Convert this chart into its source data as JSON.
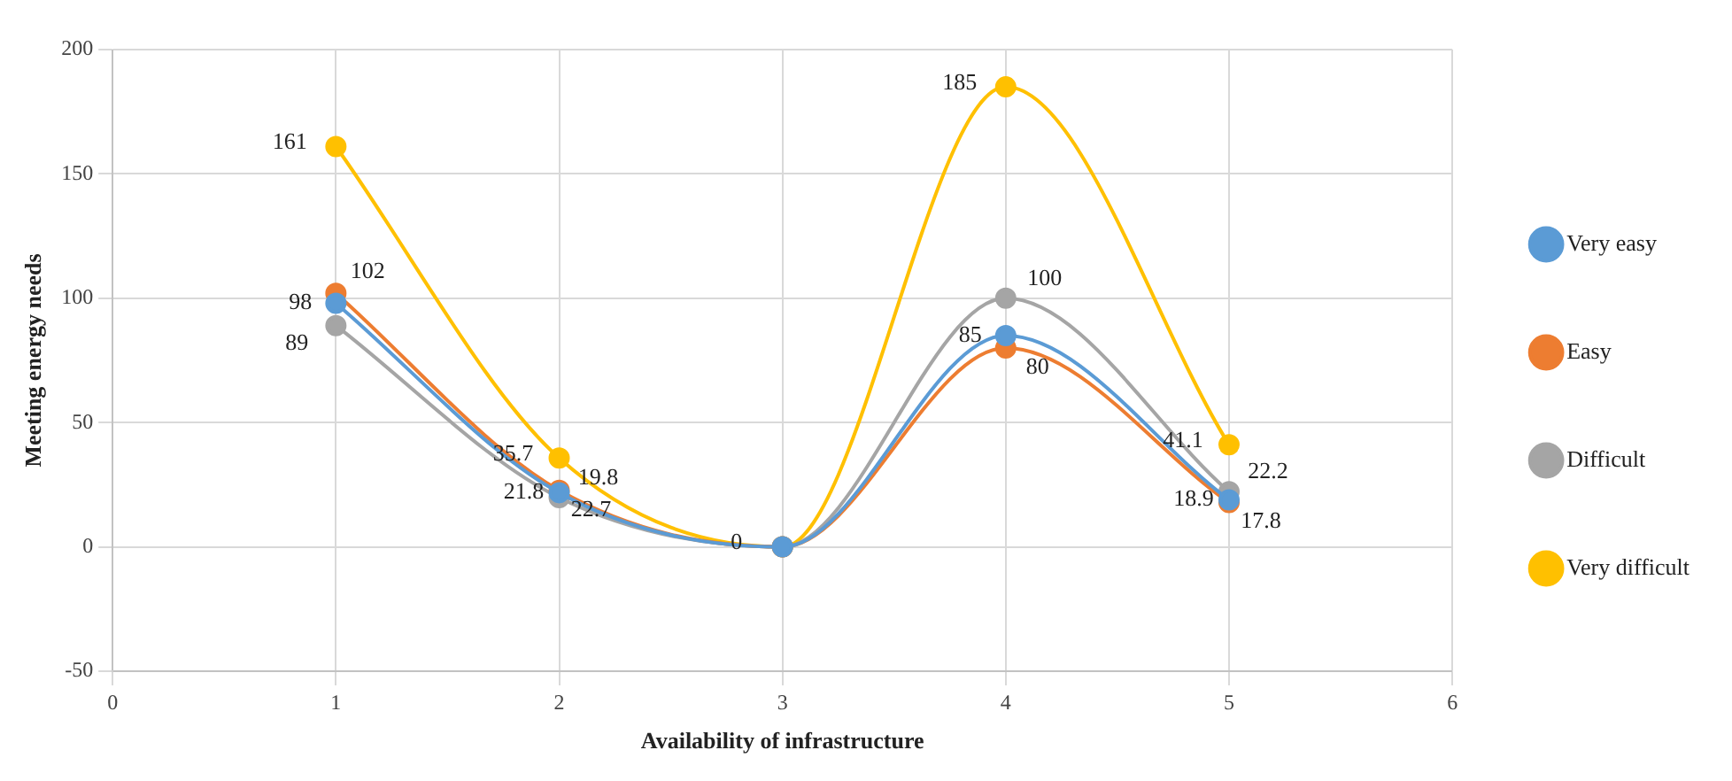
{
  "chart_data": {
    "type": "line",
    "xlabel": "Availability of infrastructure",
    "ylabel": "Meeting energy needs",
    "x": [
      1,
      2,
      3,
      4,
      5
    ],
    "xlim": [
      0,
      6
    ],
    "xticks": [
      0,
      1,
      2,
      3,
      4,
      5,
      6
    ],
    "ylim": [
      -50,
      200
    ],
    "yticks": [
      -50,
      0,
      50,
      100,
      150,
      200
    ],
    "grid": true,
    "legend": "right",
    "marker": "circle",
    "line_style": "solid",
    "series": [
      {
        "name": "Very easy",
        "color": "#5b9bd5",
        "values": [
          98,
          21.8,
          0,
          85,
          18.9
        ],
        "value_labels": [
          "98",
          "21.8",
          null,
          "85",
          "18.9"
        ]
      },
      {
        "name": "Easy",
        "color": "#ed7d31",
        "values": [
          102,
          22.7,
          0,
          80,
          17.8
        ],
        "value_labels": [
          "102",
          "22.7",
          null,
          "80",
          "17.8"
        ]
      },
      {
        "name": "Difficult",
        "color": "#a5a5a5",
        "values": [
          89,
          19.8,
          0,
          100,
          22.2
        ],
        "value_labels": [
          "89",
          "19.8",
          null,
          "100",
          "22.2"
        ]
      },
      {
        "name": "Very difficult",
        "color": "#ffc000",
        "values": [
          161,
          35.7,
          0,
          185,
          41.1
        ],
        "value_labels": [
          "161",
          "35.7",
          "0",
          "185",
          "41.1"
        ]
      }
    ]
  }
}
